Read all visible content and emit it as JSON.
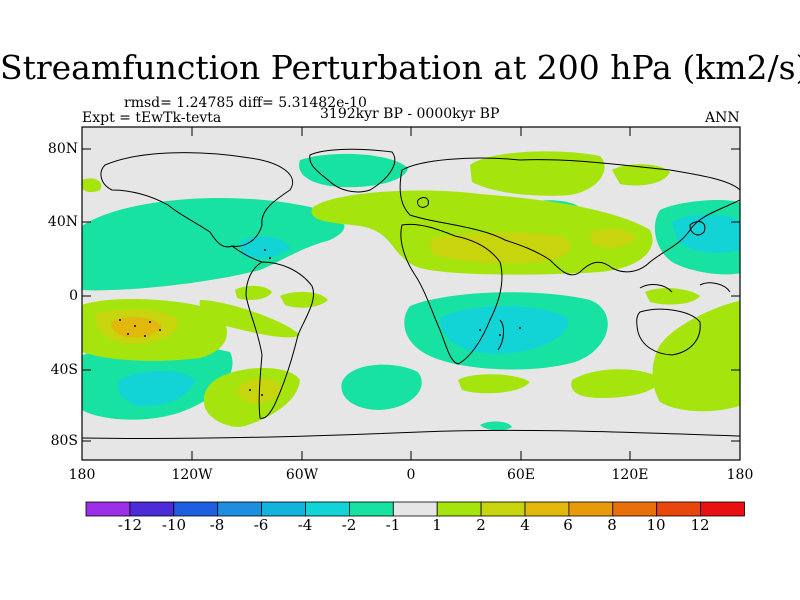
{
  "title": "Streamfunction Perturbation at 200 hPa (km2/s)",
  "stats_line": "rmsd= 1.24785 diff= 5.31482e-10",
  "experiment": "Expt = tEwTk-tevta",
  "period": "3192kyr BP - 0000kyr BP",
  "season": "ANN",
  "y_ticks": [
    "80N",
    "40N",
    "0",
    "40S",
    "80S"
  ],
  "x_ticks": [
    "180",
    "120W",
    "60W",
    "0",
    "60E",
    "120E",
    "180"
  ],
  "colorbar": {
    "labels": [
      "-12",
      "-10",
      "-8",
      "-6",
      "-4",
      "-2",
      "-1",
      "1",
      "2",
      "4",
      "6",
      "8",
      "10",
      "12"
    ],
    "colors": [
      "#9b30e8",
      "#4b2cd6",
      "#1e5fe0",
      "#1e8fe0",
      "#12b3dd",
      "#12d3d6",
      "#18e2a2",
      "#e6e6e6",
      "#a6e40e",
      "#c8d40c",
      "#e2b80c",
      "#e89a0a",
      "#e8700a",
      "#e8460a",
      "#e81010"
    ]
  }
}
